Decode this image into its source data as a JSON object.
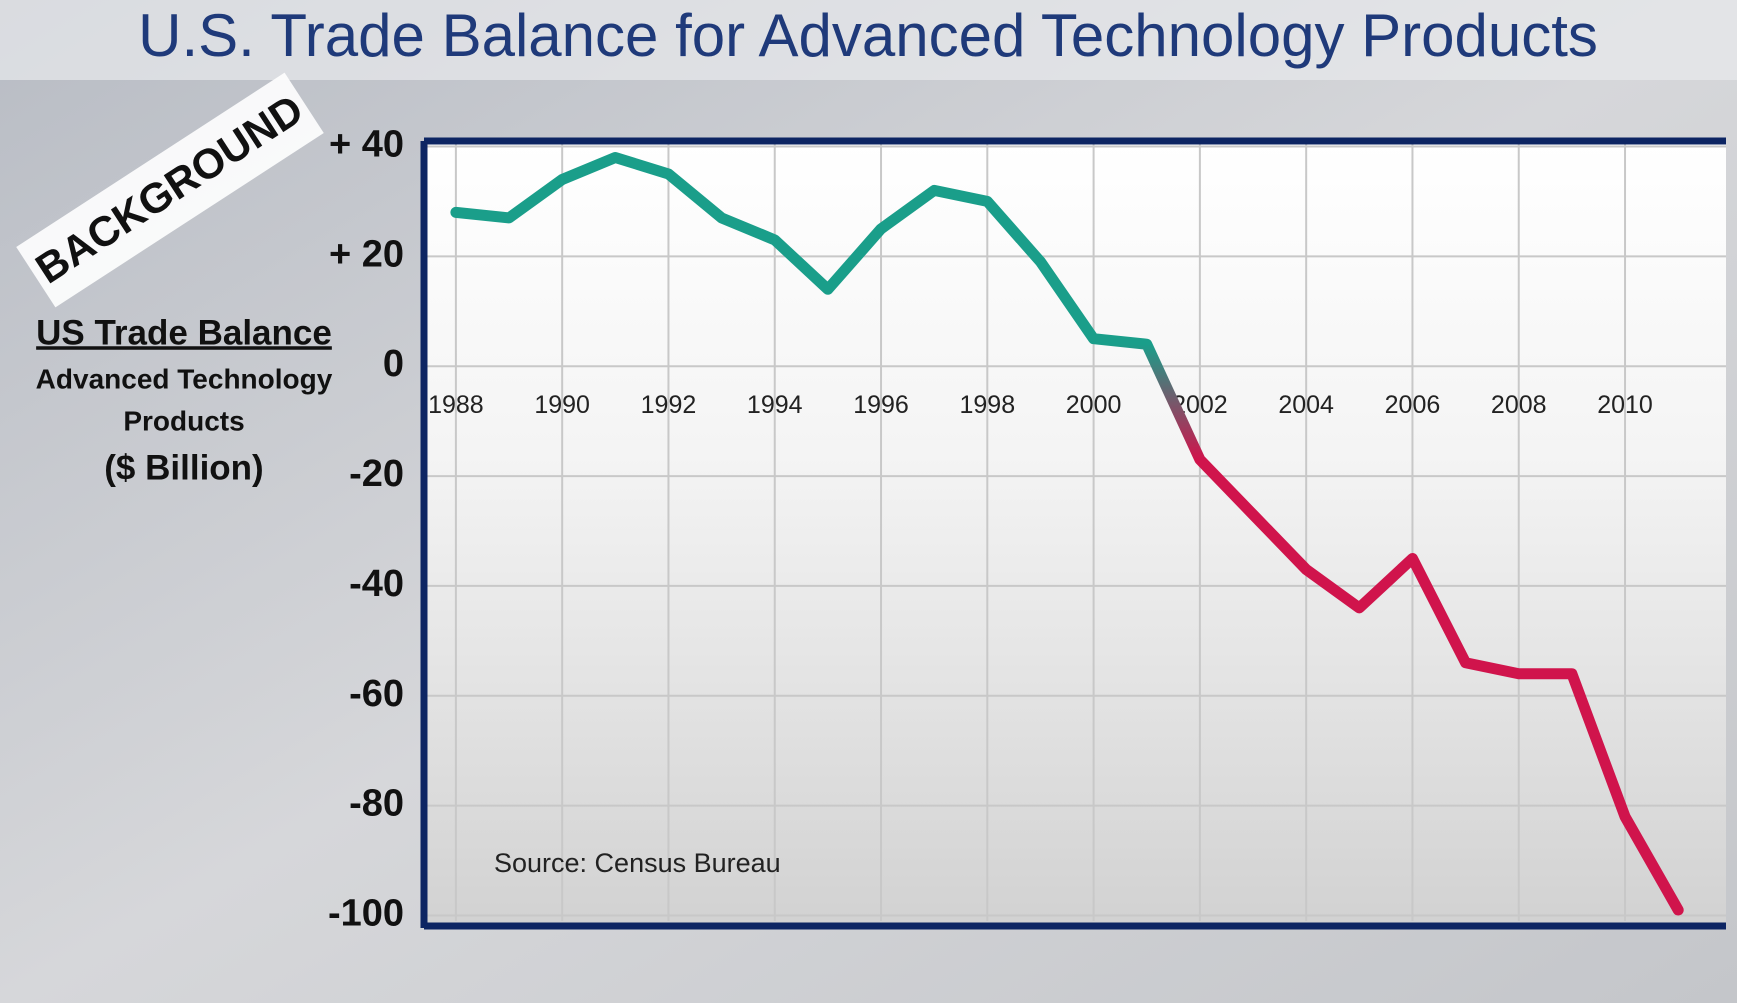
{
  "chart_data": {
    "type": "line",
    "title": "U.S. Trade Balance for Advanced Technology Products",
    "badge": "BACKGROUND",
    "y_label": [
      "US Trade Balance",
      "Advanced Technology",
      "Products",
      "($ Billion)"
    ],
    "source": "Source: Census Bureau",
    "x": [
      1988,
      1989,
      1990,
      1991,
      1992,
      1993,
      1994,
      1995,
      1996,
      1997,
      1998,
      1999,
      2000,
      2001,
      2002,
      2003,
      2004,
      2005,
      2006,
      2007,
      2008,
      2009,
      2010,
      2011
    ],
    "values": [
      28,
      27,
      34,
      38,
      35,
      27,
      23,
      14,
      25,
      32,
      30,
      19,
      5,
      4,
      -17,
      -27,
      -37,
      -44,
      -35,
      -54,
      -56,
      -56,
      -82,
      -99
    ],
    "color": "#1a9e8a",
    "negative_color": "#d0144c",
    "xlim": [
      1987.4,
      2011.9
    ],
    "xticks": [
      1988,
      1990,
      1992,
      1994,
      1996,
      1998,
      2000,
      2002,
      2004,
      2006,
      2008,
      2010
    ],
    "ylim": [
      -101,
      41
    ],
    "yticks": [
      {
        "value": 40,
        "label": "+ 40"
      },
      {
        "value": 20,
        "label": "+ 20"
      },
      0,
      -20,
      -40,
      -60,
      -80,
      -100
    ],
    "grid": true
  }
}
